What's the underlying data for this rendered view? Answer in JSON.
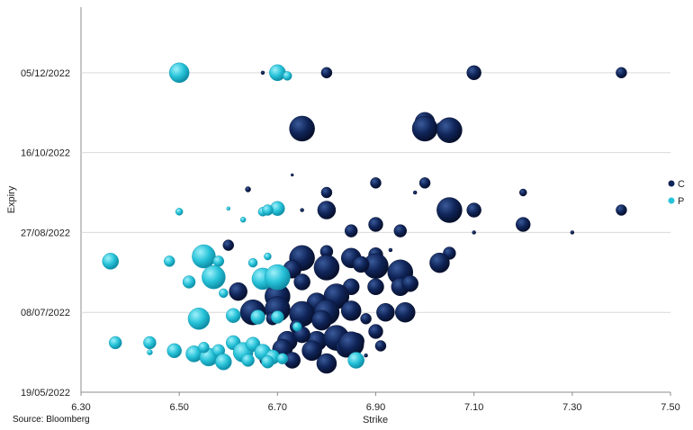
{
  "source_note": "Source: Bloomberg",
  "colors": {
    "C": "#0f2458",
    "P": "#27c3d9",
    "grid": "#d9d9d9",
    "axis": "#8c8c8c"
  },
  "chart_data": {
    "type": "scatter",
    "title": "",
    "xlabel": "Strike",
    "ylabel": "Expiry",
    "xlim": [
      6.3,
      7.5
    ],
    "ylim": [
      "19/05/2022",
      "15/01/2023"
    ],
    "x_ticks": [
      "6.30",
      "6.50",
      "6.70",
      "6.90",
      "7.10",
      "7.30",
      "7.50"
    ],
    "y_ticks": [
      "19/05/2022",
      "08/07/2022",
      "27/08/2022",
      "16/10/2022",
      "05/12/2022"
    ],
    "grid": "horizontal",
    "legend_position": "right",
    "series": [
      {
        "name": "C",
        "points": [
          {
            "x": 6.67,
            "y": "05/12/2022",
            "s": 2
          },
          {
            "x": 6.8,
            "y": "05/12/2022",
            "s": 6
          },
          {
            "x": 7.1,
            "y": "05/12/2022",
            "s": 8
          },
          {
            "x": 7.4,
            "y": "05/12/2022",
            "s": 6
          },
          {
            "x": 6.75,
            "y": "31/10/2022",
            "s": 14
          },
          {
            "x": 7.0,
            "y": "04/11/2022",
            "s": 11
          },
          {
            "x": 7.0,
            "y": "31/10/2022",
            "s": 14
          },
          {
            "x": 7.03,
            "y": "02/11/2022",
            "s": 3
          },
          {
            "x": 7.05,
            "y": "30/10/2022",
            "s": 14
          },
          {
            "x": 6.73,
            "y": "02/10/2022",
            "s": 1.5
          },
          {
            "x": 6.9,
            "y": "27/09/2022",
            "s": 6
          },
          {
            "x": 7.0,
            "y": "27/09/2022",
            "s": 6
          },
          {
            "x": 6.64,
            "y": "23/09/2022",
            "s": 3
          },
          {
            "x": 6.8,
            "y": "21/09/2022",
            "s": 6
          },
          {
            "x": 6.98,
            "y": "21/09/2022",
            "s": 2
          },
          {
            "x": 7.2,
            "y": "21/09/2022",
            "s": 4
          },
          {
            "x": 6.8,
            "y": "10/09/2022",
            "s": 10
          },
          {
            "x": 7.05,
            "y": "10/09/2022",
            "s": 14
          },
          {
            "x": 7.1,
            "y": "10/09/2022",
            "s": 8
          },
          {
            "x": 7.4,
            "y": "10/09/2022",
            "s": 6
          },
          {
            "x": 6.75,
            "y": "10/09/2022",
            "s": 2
          },
          {
            "x": 6.9,
            "y": "01/09/2022",
            "s": 8
          },
          {
            "x": 7.2,
            "y": "01/09/2022",
            "s": 8
          },
          {
            "x": 6.85,
            "y": "28/08/2022",
            "s": 7
          },
          {
            "x": 6.95,
            "y": "28/08/2022",
            "s": 7
          },
          {
            "x": 7.1,
            "y": "27/08/2022",
            "s": 2
          },
          {
            "x": 7.3,
            "y": "27/08/2022",
            "s": 2
          },
          {
            "x": 6.6,
            "y": "19/08/2022",
            "s": 6
          },
          {
            "x": 7.05,
            "y": "14/08/2022",
            "s": 7
          },
          {
            "x": 6.75,
            "y": "11/08/2022",
            "s": 14
          },
          {
            "x": 6.8,
            "y": "15/08/2022",
            "s": 7
          },
          {
            "x": 6.85,
            "y": "11/08/2022",
            "s": 11
          },
          {
            "x": 6.9,
            "y": "13/08/2022",
            "s": 8
          },
          {
            "x": 6.93,
            "y": "16/08/2022",
            "s": 2
          },
          {
            "x": 6.8,
            "y": "05/08/2022",
            "s": 14
          },
          {
            "x": 6.9,
            "y": "06/08/2022",
            "s": 14
          },
          {
            "x": 7.03,
            "y": "08/08/2022",
            "s": 11
          },
          {
            "x": 6.95,
            "y": "02/08/2022",
            "s": 14
          },
          {
            "x": 6.73,
            "y": "04/08/2022",
            "s": 10
          },
          {
            "x": 6.87,
            "y": "07/08/2022",
            "s": 9
          },
          {
            "x": 6.62,
            "y": "21/07/2022",
            "s": 10
          },
          {
            "x": 6.7,
            "y": "25/07/2022",
            "s": 9
          },
          {
            "x": 6.75,
            "y": "27/07/2022",
            "s": 9
          },
          {
            "x": 6.95,
            "y": "24/07/2022",
            "s": 10
          },
          {
            "x": 6.97,
            "y": "26/07/2022",
            "s": 9
          },
          {
            "x": 6.85,
            "y": "24/07/2022",
            "s": 9
          },
          {
            "x": 6.9,
            "y": "24/07/2022",
            "s": 9
          },
          {
            "x": 6.7,
            "y": "18/07/2022",
            "s": 14
          },
          {
            "x": 6.82,
            "y": "18/07/2022",
            "s": 14
          },
          {
            "x": 6.78,
            "y": "14/07/2022",
            "s": 11
          },
          {
            "x": 6.65,
            "y": "08/07/2022",
            "s": 14
          },
          {
            "x": 6.7,
            "y": "10/07/2022",
            "s": 14
          },
          {
            "x": 6.75,
            "y": "07/07/2022",
            "s": 14
          },
          {
            "x": 6.8,
            "y": "08/07/2022",
            "s": 14
          },
          {
            "x": 6.85,
            "y": "09/07/2022",
            "s": 11
          },
          {
            "x": 6.92,
            "y": "08/07/2022",
            "s": 10
          },
          {
            "x": 6.96,
            "y": "08/07/2022",
            "s": 11
          },
          {
            "x": 6.69,
            "y": "04/07/2022",
            "s": 7
          },
          {
            "x": 6.79,
            "y": "03/07/2022",
            "s": 11
          },
          {
            "x": 6.88,
            "y": "04/07/2022",
            "s": 6
          },
          {
            "x": 6.74,
            "y": "29/06/2022",
            "s": 8
          },
          {
            "x": 6.72,
            "y": "20/06/2022",
            "s": 11
          },
          {
            "x": 6.78,
            "y": "20/06/2022",
            "s": 11
          },
          {
            "x": 6.82,
            "y": "22/06/2022",
            "s": 14
          },
          {
            "x": 6.86,
            "y": "20/06/2022",
            "s": 9
          },
          {
            "x": 6.9,
            "y": "26/06/2022",
            "s": 8
          },
          {
            "x": 6.75,
            "y": "24/06/2022",
            "s": 9
          },
          {
            "x": 6.71,
            "y": "15/06/2022",
            "s": 11
          },
          {
            "x": 6.77,
            "y": "14/06/2022",
            "s": 11
          },
          {
            "x": 6.84,
            "y": "16/06/2022",
            "s": 11
          },
          {
            "x": 6.91,
            "y": "17/06/2022",
            "s": 6
          },
          {
            "x": 6.68,
            "y": "09/06/2022",
            "s": 9
          },
          {
            "x": 6.8,
            "y": "06/06/2022",
            "s": 11
          },
          {
            "x": 6.73,
            "y": "08/06/2022",
            "s": 9
          },
          {
            "x": 6.88,
            "y": "11/06/2022",
            "s": 2
          },
          {
            "x": 6.85,
            "y": "18/06/2022",
            "s": 14
          }
        ]
      },
      {
        "name": "P",
        "points": [
          {
            "x": 6.5,
            "y": "05/12/2022",
            "s": 11
          },
          {
            "x": 6.7,
            "y": "05/12/2022",
            "s": 9
          },
          {
            "x": 6.72,
            "y": "03/12/2022",
            "s": 5
          },
          {
            "x": 6.5,
            "y": "09/09/2022",
            "s": 4
          },
          {
            "x": 6.6,
            "y": "11/09/2022",
            "s": 2
          },
          {
            "x": 6.63,
            "y": "04/09/2022",
            "s": 3
          },
          {
            "x": 6.67,
            "y": "09/09/2022",
            "s": 5
          },
          {
            "x": 6.7,
            "y": "11/09/2022",
            "s": 8
          },
          {
            "x": 6.68,
            "y": "10/09/2022",
            "s": 6
          },
          {
            "x": 6.36,
            "y": "09/08/2022",
            "s": 9
          },
          {
            "x": 6.48,
            "y": "09/08/2022",
            "s": 6
          },
          {
            "x": 6.55,
            "y": "12/08/2022",
            "s": 13
          },
          {
            "x": 6.58,
            "y": "09/08/2022",
            "s": 6
          },
          {
            "x": 6.65,
            "y": "08/08/2022",
            "s": 5
          },
          {
            "x": 6.68,
            "y": "12/08/2022",
            "s": 4
          },
          {
            "x": 6.52,
            "y": "27/07/2022",
            "s": 7
          },
          {
            "x": 6.57,
            "y": "30/07/2022",
            "s": 13
          },
          {
            "x": 6.67,
            "y": "29/07/2022",
            "s": 12
          },
          {
            "x": 6.7,
            "y": "30/07/2022",
            "s": 14
          },
          {
            "x": 6.59,
            "y": "20/07/2022",
            "s": 5
          },
          {
            "x": 6.54,
            "y": "04/07/2022",
            "s": 12
          },
          {
            "x": 6.61,
            "y": "06/07/2022",
            "s": 8
          },
          {
            "x": 6.66,
            "y": "05/07/2022",
            "s": 8
          },
          {
            "x": 6.7,
            "y": "05/07/2022",
            "s": 7
          },
          {
            "x": 6.74,
            "y": "29/06/2022",
            "s": 5
          },
          {
            "x": 6.37,
            "y": "19/06/2022",
            "s": 7
          },
          {
            "x": 6.44,
            "y": "19/06/2022",
            "s": 7
          },
          {
            "x": 6.49,
            "y": "14/06/2022",
            "s": 8
          },
          {
            "x": 6.53,
            "y": "12/06/2022",
            "s": 9
          },
          {
            "x": 6.56,
            "y": "10/06/2022",
            "s": 10
          },
          {
            "x": 6.58,
            "y": "14/06/2022",
            "s": 7
          },
          {
            "x": 6.61,
            "y": "19/06/2022",
            "s": 8
          },
          {
            "x": 6.63,
            "y": "13/06/2022",
            "s": 11
          },
          {
            "x": 6.65,
            "y": "18/06/2022",
            "s": 8
          },
          {
            "x": 6.67,
            "y": "13/06/2022",
            "s": 9
          },
          {
            "x": 6.69,
            "y": "10/06/2022",
            "s": 8
          },
          {
            "x": 6.71,
            "y": "09/06/2022",
            "s": 6
          },
          {
            "x": 6.59,
            "y": "07/06/2022",
            "s": 9
          },
          {
            "x": 6.64,
            "y": "08/06/2022",
            "s": 7
          },
          {
            "x": 6.68,
            "y": "07/06/2022",
            "s": 7
          },
          {
            "x": 6.86,
            "y": "08/06/2022",
            "s": 9
          },
          {
            "x": 6.44,
            "y": "13/06/2022",
            "s": 3
          },
          {
            "x": 6.55,
            "y": "16/06/2022",
            "s": 6
          }
        ]
      }
    ]
  }
}
